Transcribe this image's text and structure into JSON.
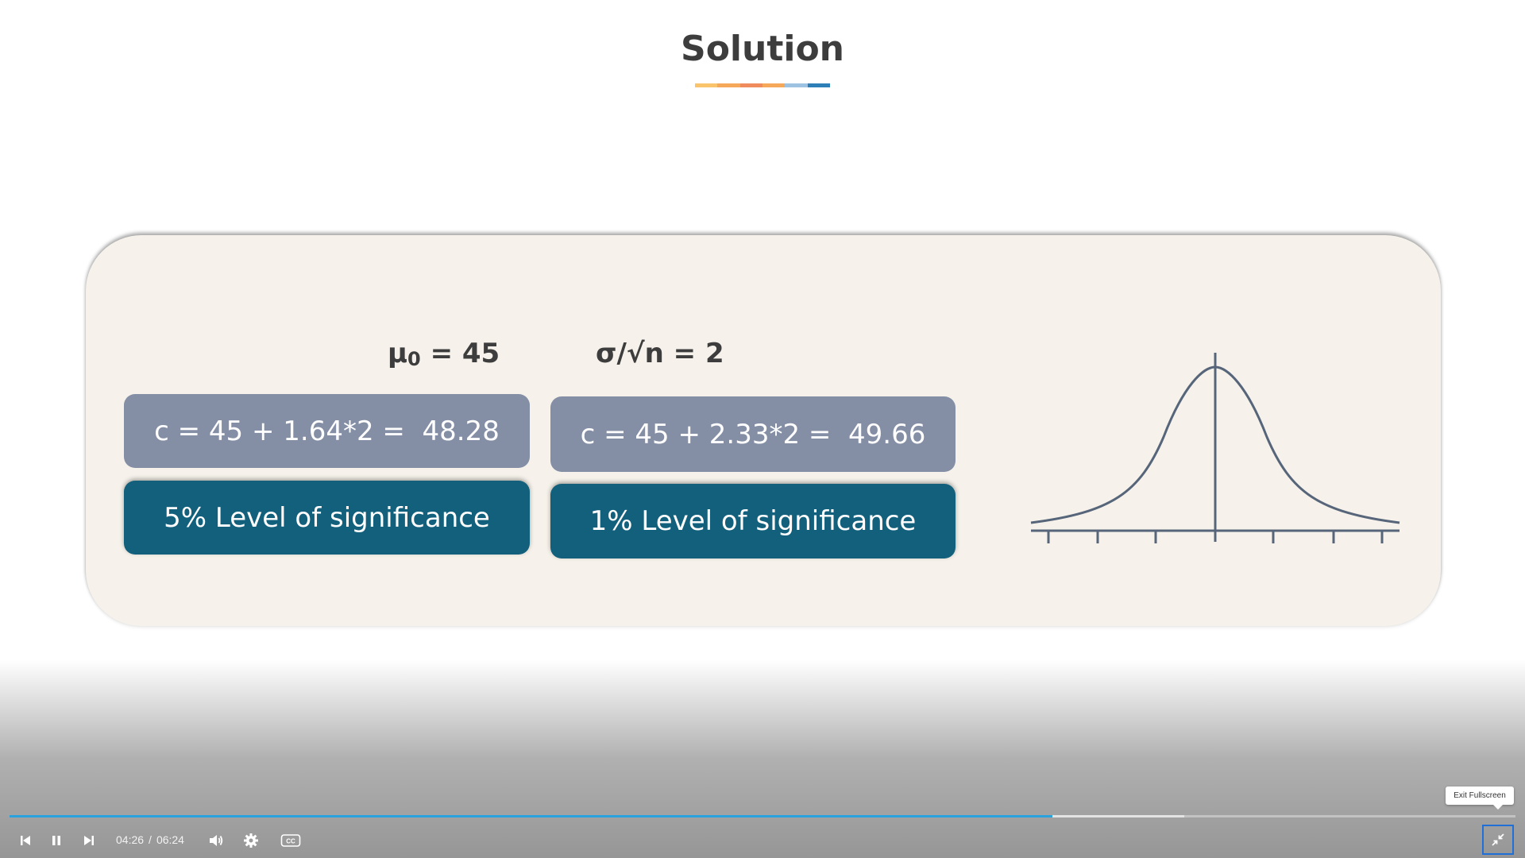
{
  "slide": {
    "title": "Solution",
    "underline_colors": [
      "#f9c46b",
      "#f6a85a",
      "#ef8b5c",
      "#f6a85a",
      "#9ec3e2",
      "#2e7fb8"
    ],
    "mu_label": "μ",
    "mu_sub": "0",
    "mu_value": " = 45",
    "sigma_label": "σ/√n = 2",
    "calc_5": "c = 45 + 1.64*2 =  48.28",
    "level_5": "5% Level of significance",
    "calc_1": "c = 45 + 2.33*2 =  49.66",
    "level_1": "1% Level of significance"
  },
  "player": {
    "current_time": "04:26",
    "separator": "/",
    "duration": "06:24",
    "progress_fraction": 0.6927,
    "buffered_fraction": 0.78,
    "tooltip": "Exit Fullscreen",
    "icons": [
      "previous-icon",
      "pause-icon",
      "next-icon",
      "volume-icon",
      "settings-gear-icon",
      "closed-captions-icon",
      "exit-fullscreen-icon"
    ],
    "accent_color": "#2aa2dd",
    "focus_color": "#1f6fd6"
  }
}
